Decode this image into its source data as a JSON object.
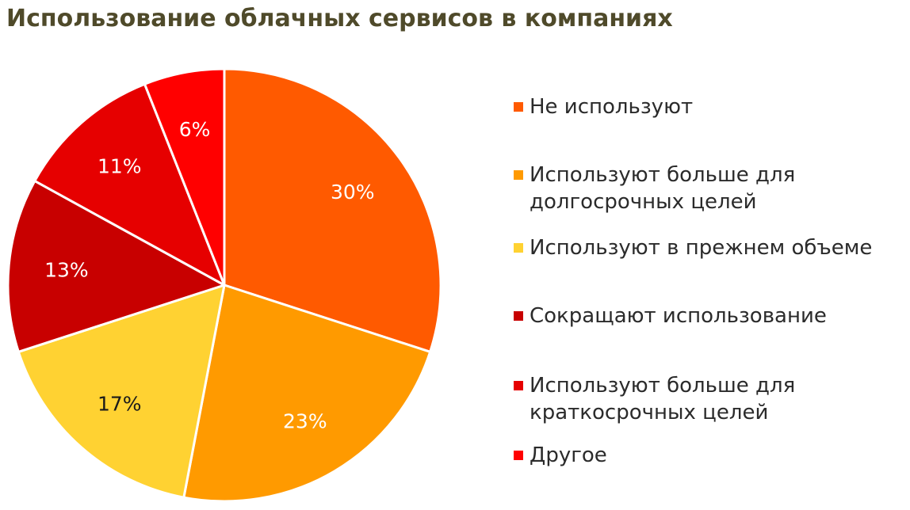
{
  "chart_data": {
    "type": "pie",
    "title": "Использование облачных сервисов в компаниях",
    "categories": [
      "Не используют",
      "Используют больше для\nдолгосрочных целей",
      "Используют в прежнем объеме",
      "Сокращают использование",
      "Используют больше для\nкраткосрочных целей",
      "Другое"
    ],
    "values": [
      30,
      23,
      17,
      13,
      11,
      6
    ],
    "labels": [
      "30%",
      "23%",
      "17%",
      "13%",
      "11%",
      "6%"
    ],
    "colors": [
      "#ff5a00",
      "#ff9a00",
      "#ffd232",
      "#c80000",
      "#e60000",
      "#ff0000"
    ],
    "label_colors": [
      "#ffffff",
      "#ffffff",
      "#1a1a1a",
      "#ffffff",
      "#ffffff",
      "#ffffff"
    ],
    "legend_position": "right"
  }
}
